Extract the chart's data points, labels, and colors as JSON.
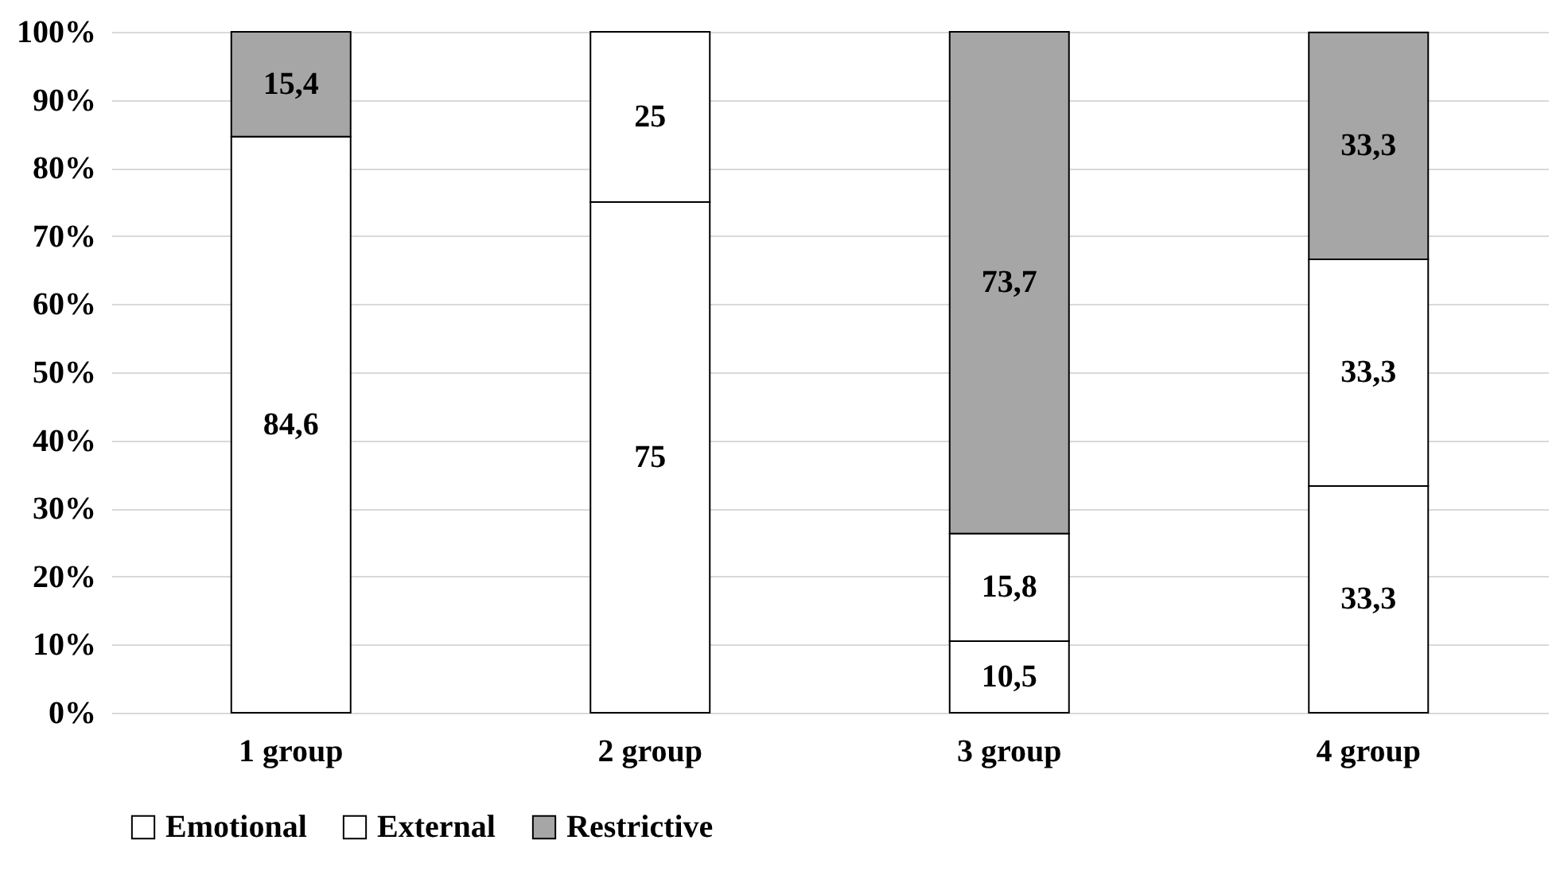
{
  "chart_data": {
    "type": "bar",
    "stacked": true,
    "categories": [
      "1 group",
      "2 group",
      "3 group",
      "4 group"
    ],
    "series": [
      {
        "name": "Emotional",
        "color": "#ffffff",
        "values": [
          84.6,
          75,
          10.5,
          33.3
        ],
        "value_labels": [
          "84,6",
          "75",
          "10,5",
          "33,3"
        ]
      },
      {
        "name": "External",
        "color": "#ffffff",
        "values": [
          null,
          25,
          15.8,
          33.3
        ],
        "value_labels": [
          null,
          "25",
          "15,8",
          "33,3"
        ]
      },
      {
        "name": "Restrictive",
        "color": "#a6a6a6",
        "values": [
          15.4,
          null,
          73.7,
          33.3
        ],
        "value_labels": [
          "15,4",
          null,
          "73,7",
          "33,3"
        ]
      }
    ],
    "ylim": [
      0,
      100
    ],
    "yticks": [
      {
        "value": 0,
        "label": "0%"
      },
      {
        "value": 10,
        "label": "10%"
      },
      {
        "value": 20,
        "label": "20%"
      },
      {
        "value": 30,
        "label": "30%"
      },
      {
        "value": 40,
        "label": "40%"
      },
      {
        "value": 50,
        "label": "50%"
      },
      {
        "value": 60,
        "label": "60%"
      },
      {
        "value": 70,
        "label": "70%"
      },
      {
        "value": 80,
        "label": "80%"
      },
      {
        "value": 90,
        "label": "90%"
      },
      {
        "value": 100,
        "label": "100%"
      }
    ],
    "grid": "y",
    "legend": "bottom"
  }
}
